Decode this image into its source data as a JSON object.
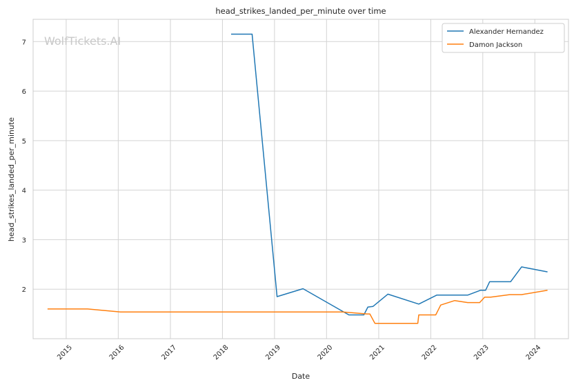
{
  "chart_data": {
    "type": "line",
    "title": "head_strikes_landed_per_minute over time",
    "xlabel": "Date",
    "ylabel": "head_strikes_landed_per_minute",
    "watermark": "WolfTickets.AI",
    "x_ticks": [
      "2015",
      "2016",
      "2017",
      "2018",
      "2019",
      "2020",
      "2021",
      "2022",
      "2023",
      "2024"
    ],
    "y_ticks": [
      "2",
      "3",
      "4",
      "5",
      "6",
      "7"
    ],
    "xlim": [
      "2014-05-14",
      "2024-08-24"
    ],
    "ylim": [
      1.0,
      7.45
    ],
    "grid": true,
    "legend_position": "top-right",
    "colors": {
      "Alexander Hernandez": "#1f77b4",
      "Damon Jackson": "#ff7f0e"
    },
    "series": [
      {
        "name": "Alexander Hernandez",
        "points": [
          [
            "2018-03-03",
            7.15
          ],
          [
            "2018-07-28",
            7.15
          ],
          [
            "2019-01-19",
            1.85
          ],
          [
            "2019-07-20",
            2.01
          ],
          [
            "2020-06-06",
            1.48
          ],
          [
            "2020-09-19",
            1.48
          ],
          [
            "2020-10-17",
            1.64
          ],
          [
            "2020-11-21",
            1.65
          ],
          [
            "2021-03-06",
            1.9
          ],
          [
            "2021-10-09",
            1.7
          ],
          [
            "2022-02-12",
            1.88
          ],
          [
            "2022-09-17",
            1.88
          ],
          [
            "2022-12-17",
            1.98
          ],
          [
            "2023-01-21",
            1.98
          ],
          [
            "2023-02-18",
            2.15
          ],
          [
            "2023-07-15",
            2.15
          ],
          [
            "2023-09-30",
            2.45
          ],
          [
            "2024-03-30",
            2.35
          ]
        ]
      },
      {
        "name": "Damon Jackson",
        "points": [
          [
            "2014-08-23",
            1.6
          ],
          [
            "2015-05-30",
            1.6
          ],
          [
            "2016-01-17",
            1.54
          ],
          [
            "2020-04-25",
            1.54
          ],
          [
            "2020-10-10",
            1.5
          ],
          [
            "2020-10-31",
            1.5
          ],
          [
            "2020-12-05",
            1.31
          ],
          [
            "2021-10-02",
            1.31
          ],
          [
            "2021-10-09",
            1.48
          ],
          [
            "2022-02-05",
            1.48
          ],
          [
            "2022-03-12",
            1.68
          ],
          [
            "2022-06-18",
            1.77
          ],
          [
            "2022-09-17",
            1.73
          ],
          [
            "2022-12-10",
            1.73
          ],
          [
            "2023-01-14",
            1.84
          ],
          [
            "2023-02-25",
            1.84
          ],
          [
            "2023-07-08",
            1.89
          ],
          [
            "2023-09-30",
            1.89
          ],
          [
            "2024-03-30",
            1.98
          ]
        ]
      }
    ]
  }
}
